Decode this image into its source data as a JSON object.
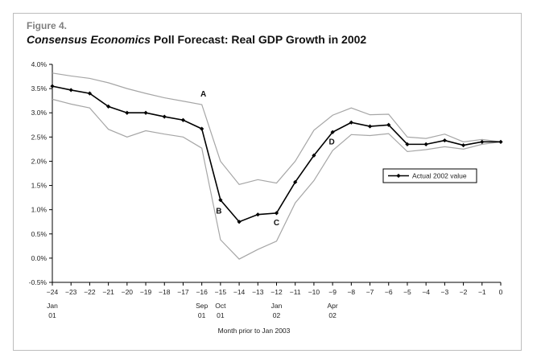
{
  "figure": {
    "label": "Figure 4.",
    "title_italic": "Consensus Economics",
    "title_rest": " Poll Forecast: Real GDP Growth in 2002"
  },
  "chart_data": {
    "type": "line",
    "x": [
      -24,
      -23,
      -22,
      -21,
      -20,
      -19,
      -18,
      -17,
      -16,
      -15,
      -14,
      -13,
      -12,
      -11,
      -10,
      -9,
      -8,
      -7,
      -6,
      -5,
      -4,
      -3,
      -2,
      -1,
      0
    ],
    "series": [
      {
        "name": "Actual 2002 value",
        "role": "forecast",
        "color": "#000000",
        "markers": true,
        "values": [
          3.55,
          3.47,
          3.4,
          3.13,
          3.0,
          3.0,
          2.92,
          2.85,
          2.67,
          1.2,
          0.75,
          0.9,
          0.93,
          1.57,
          2.12,
          2.6,
          2.8,
          2.72,
          2.75,
          2.35,
          2.35,
          2.43,
          2.33,
          2.4,
          2.4
        ]
      },
      {
        "role": "upper-band",
        "color": "#a6a6a6",
        "markers": false,
        "values": [
          3.82,
          3.76,
          3.71,
          3.62,
          3.5,
          3.4,
          3.31,
          3.24,
          3.17,
          2.0,
          1.52,
          1.62,
          1.55,
          2.0,
          2.64,
          2.95,
          3.1,
          2.96,
          2.97,
          2.5,
          2.47,
          2.56,
          2.4,
          2.45,
          2.4
        ]
      },
      {
        "role": "lower-band",
        "color": "#a6a6a6",
        "markers": false,
        "values": [
          3.28,
          3.18,
          3.1,
          2.66,
          2.5,
          2.63,
          2.56,
          2.5,
          2.27,
          0.38,
          -0.02,
          0.18,
          0.35,
          1.14,
          1.6,
          2.22,
          2.55,
          2.53,
          2.57,
          2.2,
          2.24,
          2.3,
          2.25,
          2.35,
          2.4
        ]
      }
    ],
    "xlabel": "Month prior to Jan 2003",
    "ylabel": "",
    "ylim": [
      -0.5,
      4.0
    ],
    "xlim": [
      -24,
      0
    ],
    "y_ticks": [
      "-0.5%",
      "0.0%",
      "0.5%",
      "1.0%",
      "1.5%",
      "2.0%",
      "2.5%",
      "3.0%",
      "3.5%",
      "4.0%"
    ],
    "x_ticks": [
      "−24",
      "−23",
      "−22",
      "−21",
      "−20",
      "−19",
      "−18",
      "−17",
      "−16",
      "−15",
      "−14",
      "−13",
      "−12",
      "−11",
      "−10",
      "−9",
      "−8",
      "−7",
      "−6",
      "−5",
      "−4",
      "−3",
      "−2",
      "−1",
      "0"
    ],
    "date_labels": [
      {
        "x": -24,
        "line1": "Jan",
        "line2": "01"
      },
      {
        "x": -16,
        "line1": "Sep",
        "line2": "01"
      },
      {
        "x": -15,
        "line1": "Oct",
        "line2": "01"
      },
      {
        "x": -12,
        "line1": "Jan",
        "line2": "02"
      },
      {
        "x": -9,
        "line1": "Apr",
        "line2": "02"
      }
    ],
    "annotations": [
      {
        "text": "A",
        "x": -16,
        "y": 3.17
      },
      {
        "text": "B",
        "x": -15,
        "y": 1.2
      },
      {
        "text": "C",
        "x": -12,
        "y": 0.93
      },
      {
        "text": "D",
        "x": -9,
        "y": 2.6
      }
    ],
    "legend": {
      "label": "Actual 2002 value",
      "position": "right"
    },
    "grid": false
  }
}
